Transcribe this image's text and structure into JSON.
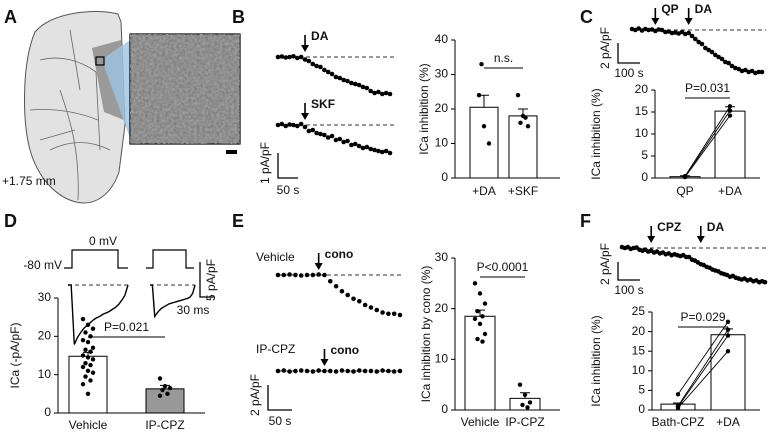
{
  "figure": {
    "panel_labels": [
      "A",
      "B",
      "C",
      "D",
      "E",
      "F"
    ],
    "a_annotation": "+1.75 mm"
  },
  "chart_data": [
    {
      "type": "trace",
      "arrows": [
        "DA",
        "SKF"
      ],
      "scale_y_label": "1 pA/pF",
      "scale_x_label": "50 s",
      "series": [
        {
          "values": [
            0,
            0.02,
            -0.02,
            0,
            0.03,
            -0.04,
            0,
            -0.1,
            -0.16,
            -0.28,
            -0.36,
            -0.4,
            -0.52,
            -0.6,
            -0.68,
            -0.8,
            -0.84,
            -0.92,
            -0.96,
            -1.04,
            -1.08,
            -1.12,
            -1.2,
            -1.24,
            -1.36,
            -1.44,
            -1.4,
            -1.48,
            -1.44,
            -1.48
          ]
        },
        {
          "values": [
            0,
            0.04,
            -0.04,
            0.02,
            0,
            -0.04,
            0.04,
            -0.08,
            -0.24,
            -0.2,
            -0.32,
            -0.36,
            -0.4,
            -0.5,
            -0.44,
            -0.6,
            -0.56,
            -0.68,
            -0.64,
            -0.8,
            -0.76,
            -0.84,
            -0.92,
            -0.88,
            -0.96,
            -1.0,
            -1.04,
            -1.08,
            -1.04,
            -1.12
          ]
        }
      ]
    },
    {
      "type": "bar",
      "ylabel": "ICa inhibition (%)",
      "categories": [
        "+DA",
        "+SKF"
      ],
      "values": [
        20.5,
        18
      ],
      "errors": [
        3.5,
        2
      ],
      "points": [
        [
          24,
          15,
          10,
          33
        ],
        [
          24,
          18,
          15,
          16,
          17.5
        ]
      ],
      "paired": false,
      "colors": [
        "#ffffff",
        "#ffffff"
      ],
      "ylim": [
        0,
        40
      ],
      "yticks": [
        0,
        10,
        20,
        30,
        40
      ],
      "significance": "n.s."
    },
    {
      "type": "trace",
      "arrows": [
        "QP",
        "DA"
      ],
      "scale_y_label": "2 pA/pF",
      "scale_x_label": "100 s",
      "series": [
        {
          "values": [
            0.1,
            0,
            0.15,
            -0.05,
            0.1,
            0,
            0.05,
            -0.1,
            0.05,
            0,
            -0.2,
            -0.15,
            -0.3,
            -0.25,
            -0.35,
            -0.2,
            -0.4,
            -0.3,
            -0.6,
            -0.9,
            -1.2,
            -1.4,
            -1.8,
            -2.0,
            -2.2,
            -2.5,
            -2.7,
            -2.9,
            -3.2,
            -3.3,
            -3.6,
            -3.8,
            -3.9,
            -4.1,
            -4.0,
            -4.2,
            -4.1,
            -4.3,
            -4.2,
            -4.2
          ]
        }
      ]
    },
    {
      "type": "bar",
      "ylabel": "ICa inhibition (%)",
      "categories": [
        "QP",
        "+DA"
      ],
      "values": [
        0.3,
        15.2
      ],
      "errors": [
        0.2,
        1.0
      ],
      "points": [
        [
          0.2,
          0.3,
          0.4
        ],
        [
          14.2,
          15.3,
          16.3
        ]
      ],
      "paired": true,
      "colors": [
        "#ffffff",
        "#ffffff"
      ],
      "ylim": [
        0,
        20
      ],
      "yticks": [
        0,
        5,
        10,
        15,
        20
      ],
      "significance": "P=0.031"
    },
    {
      "type": "current",
      "protocol_labels": [
        "0 mV",
        "-80 mV"
      ],
      "scale_y_label": "5 pA/pF",
      "scale_x_label": "30 ms",
      "series": [
        {
          "values": [
            0,
            0,
            -8.5,
            -7.5,
            -6.8,
            -6.2,
            -5.8,
            -5.4,
            -5.0,
            -4.7,
            -4.5,
            -4.2,
            -4.0,
            -3.8,
            -3.5,
            -3.2,
            -2.8,
            -2.2,
            -1.5,
            0
          ]
        },
        {
          "values": [
            0,
            0,
            -4.5,
            -4.0,
            -3.6,
            -3.3,
            -3.1,
            -2.9,
            -2.7,
            -2.6,
            -2.5,
            -2.4,
            -2.3,
            -2.2,
            -2.1,
            -2.0,
            -1.9,
            -1.7,
            -1.2,
            0
          ]
        }
      ]
    },
    {
      "type": "bar",
      "ylabel": "ICa (-pA/pF)",
      "categories": [
        "Vehicle",
        "IP-CPZ"
      ],
      "values": [
        14.8,
        6.3
      ],
      "errors": [
        1.0,
        0.9
      ],
      "points": [
        [
          24.5,
          23,
          22,
          21,
          20,
          19,
          18.5,
          17,
          16.5,
          16,
          15,
          14.5,
          14,
          13,
          12.5,
          12,
          11,
          10.5,
          9.5,
          8.5,
          7.5,
          5
        ],
        [
          9,
          7,
          6.5,
          6,
          5,
          4.5
        ]
      ],
      "paired": false,
      "colors": [
        "#ffffff",
        "#999999"
      ],
      "ylim": [
        0,
        30
      ],
      "yticks": [
        0,
        10,
        20,
        30
      ],
      "significance": "P=0.021"
    },
    {
      "type": "trace",
      "arrows": [
        "cono",
        "cono"
      ],
      "scale_y_label": "2 pA/pF",
      "scale_x_label": "50 s",
      "series": [
        {
          "name": "Vehicle",
          "values": [
            0,
            0,
            0.04,
            0,
            -0.04,
            0,
            0,
            0.04,
            0,
            -0.5,
            -0.9,
            -1.3,
            -1.6,
            -1.9,
            -2.1,
            -2.4,
            -2.6,
            -2.8,
            -3.0,
            -3.1,
            -3.1,
            -3.2
          ]
        },
        {
          "name": "IP-CPZ",
          "values": [
            0,
            0.04,
            -0.04,
            0,
            0.04,
            0,
            -0.04,
            0.04,
            0,
            0,
            -0.04,
            0.04,
            0,
            -0.04,
            0.04,
            0,
            0,
            -0.04,
            0.04,
            0,
            -0.04,
            0
          ]
        }
      ]
    },
    {
      "type": "bar",
      "ylabel": "ICa inhibition by cono (%)",
      "categories": [
        "Vehicle",
        "IP-CPZ"
      ],
      "values": [
        18.5,
        2.3
      ],
      "errors": [
        1.2,
        1.1
      ],
      "points": [
        [
          25,
          23,
          21,
          19.5,
          18.5,
          18,
          17,
          15,
          14,
          13.5
        ],
        [
          5,
          3,
          1.5,
          1,
          0.5
        ]
      ],
      "paired": false,
      "colors": [
        "#ffffff",
        "#ffffff"
      ],
      "ylim": [
        0,
        30
      ],
      "yticks": [
        0,
        10,
        20,
        30
      ],
      "significance": "P<0.0001"
    },
    {
      "type": "trace",
      "arrows": [
        "CPZ",
        "DA"
      ],
      "scale_y_label": "2 pA/pF",
      "scale_x_label": "100 s",
      "series": [
        {
          "values": [
            0.1,
            0,
            0.1,
            -0.1,
            0,
            0.05,
            -0.2,
            -0.3,
            -0.2,
            -0.4,
            -0.3,
            -0.5,
            -0.4,
            -0.6,
            -0.5,
            -0.7,
            -0.6,
            -0.8,
            -0.7,
            -0.8,
            -0.9,
            -0.8,
            -1.0,
            -1.0,
            -1.3,
            -1.4,
            -1.6,
            -1.8,
            -1.9,
            -2.1,
            -2.2,
            -2.4,
            -2.5,
            -2.6,
            -2.8,
            -2.9,
            -3.0,
            -3.2,
            -3.1,
            -3.3,
            -3.4,
            -3.5,
            -3.4,
            -3.6,
            -3.5,
            -3.7,
            -3.6,
            -3.8,
            -3.7,
            -3.8
          ]
        }
      ]
    },
    {
      "type": "bar",
      "ylabel": "ICa inhibition (%)",
      "categories": [
        "Bath-CPZ",
        "+DA"
      ],
      "values": [
        1.5,
        19.2
      ],
      "errors": [
        0.3,
        1.5
      ],
      "points": [
        [
          4,
          0.5,
          1,
          0.8
        ],
        [
          22.5,
          15,
          20.5,
          19
        ]
      ],
      "paired": true,
      "colors": [
        "#ffffff",
        "#ffffff"
      ],
      "ylim": [
        0,
        25
      ],
      "yticks": [
        0,
        5,
        10,
        15,
        20,
        25
      ],
      "significance": "P=0.029"
    }
  ]
}
